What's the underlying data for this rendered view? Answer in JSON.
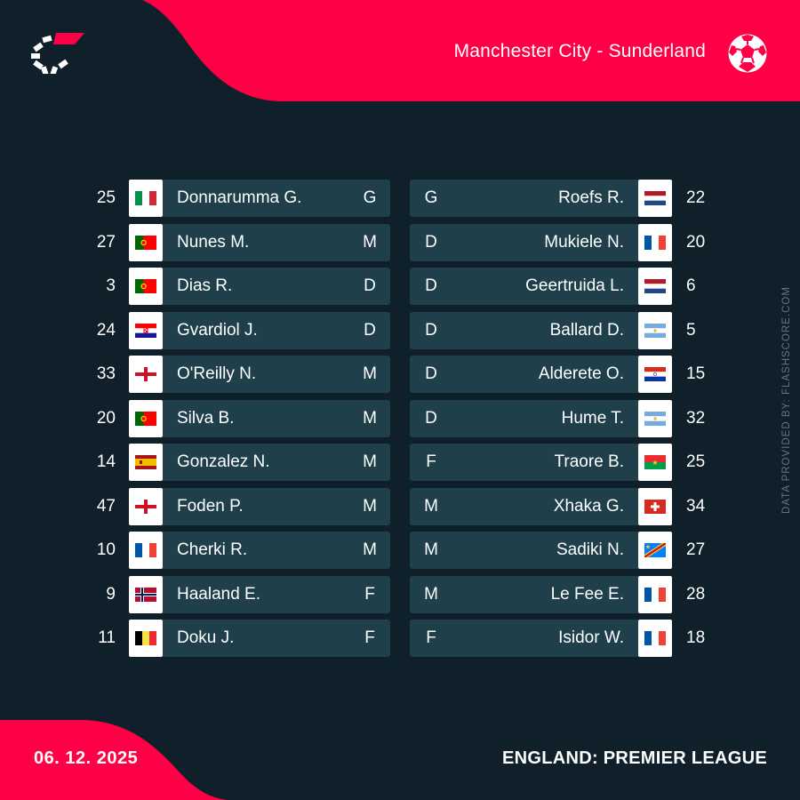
{
  "header": {
    "match": "Manchester City - Sunderland"
  },
  "footer": {
    "date": "06. 12. 2025",
    "competition": "ENGLAND: PREMIER LEAGUE"
  },
  "credit": "DATA PROVIDED BY: FLASHSCORE.COM",
  "colors": {
    "background": "#0f202a",
    "accent": "#ff0046",
    "row": "#1f3f4b"
  },
  "icons": {
    "logo": "flashscore-logo-icon",
    "sport": "football-icon"
  },
  "home": [
    {
      "number": "25",
      "flag": "italy",
      "name": "Donnarumma G.",
      "position": "G"
    },
    {
      "number": "27",
      "flag": "portugal",
      "name": "Nunes M.",
      "position": "M"
    },
    {
      "number": "3",
      "flag": "portugal",
      "name": "Dias R.",
      "position": "D"
    },
    {
      "number": "24",
      "flag": "croatia",
      "name": "Gvardiol J.",
      "position": "D"
    },
    {
      "number": "33",
      "flag": "england",
      "name": "O'Reilly N.",
      "position": "M"
    },
    {
      "number": "20",
      "flag": "portugal",
      "name": "Silva B.",
      "position": "M"
    },
    {
      "number": "14",
      "flag": "spain",
      "name": "Gonzalez N.",
      "position": "M"
    },
    {
      "number": "47",
      "flag": "england",
      "name": "Foden P.",
      "position": "M"
    },
    {
      "number": "10",
      "flag": "france",
      "name": "Cherki R.",
      "position": "M"
    },
    {
      "number": "9",
      "flag": "norway",
      "name": "Haaland E.",
      "position": "F"
    },
    {
      "number": "11",
      "flag": "belgium",
      "name": "Doku J.",
      "position": "F"
    }
  ],
  "away": [
    {
      "number": "22",
      "flag": "netherlands",
      "name": "Roefs R.",
      "position": "G"
    },
    {
      "number": "20",
      "flag": "france",
      "name": "Mukiele N.",
      "position": "D"
    },
    {
      "number": "6",
      "flag": "netherlands",
      "name": "Geertruida L.",
      "position": "D"
    },
    {
      "number": "5",
      "flag": "argentina",
      "name": "Ballard D.",
      "position": "D"
    },
    {
      "number": "15",
      "flag": "paraguay",
      "name": "Alderete O.",
      "position": "D"
    },
    {
      "number": "32",
      "flag": "argentina",
      "name": "Hume T.",
      "position": "D"
    },
    {
      "number": "25",
      "flag": "burkina-faso",
      "name": "Traore B.",
      "position": "F"
    },
    {
      "number": "34",
      "flag": "switzerland",
      "name": "Xhaka G.",
      "position": "M"
    },
    {
      "number": "27",
      "flag": "dr-congo",
      "name": "Sadiki N.",
      "position": "M"
    },
    {
      "number": "28",
      "flag": "france",
      "name": "Le Fee E.",
      "position": "M"
    },
    {
      "number": "18",
      "flag": "france",
      "name": "Isidor W.",
      "position": "F"
    }
  ]
}
